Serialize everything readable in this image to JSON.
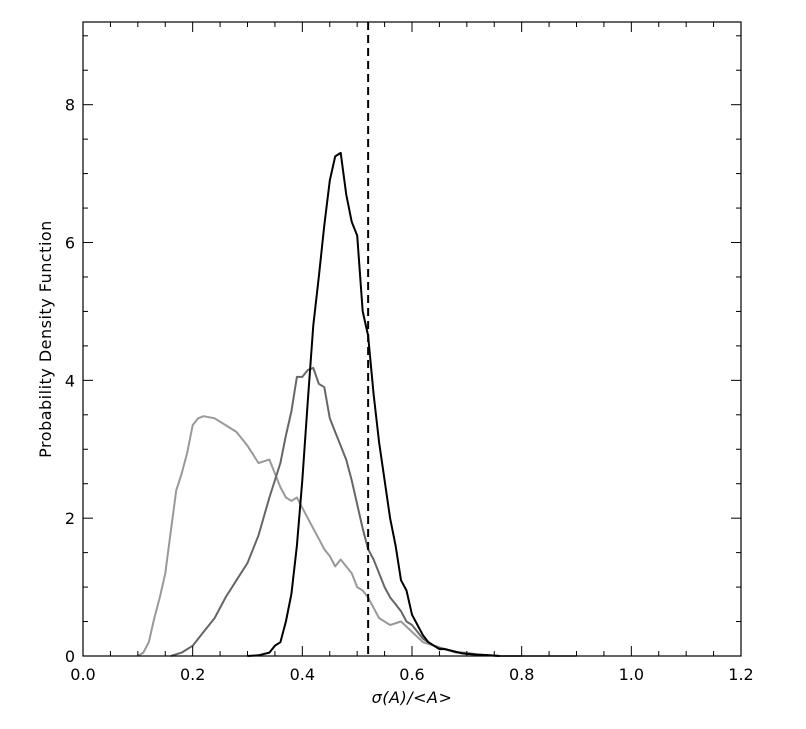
{
  "chart_data": {
    "type": "line",
    "xlabel": "σ(A)/<A>",
    "ylabel": "Probability Density Function",
    "xlim": [
      0.0,
      1.2
    ],
    "ylim": [
      0,
      9.2
    ],
    "xticks": [
      0.0,
      0.2,
      0.4,
      0.6,
      0.8,
      1.0,
      1.2
    ],
    "xtick_labels": [
      "0.0",
      "0.2",
      "0.4",
      "0.6",
      "0.8",
      "1.0",
      "1.2"
    ],
    "yticks": [
      0,
      2,
      4,
      6,
      8
    ],
    "ytick_labels": [
      "0",
      "2",
      "4",
      "6",
      "8"
    ],
    "grid": false,
    "vline": {
      "x": 0.52,
      "style": "dashed",
      "color": "#000000"
    },
    "series": [
      {
        "color": "#999999",
        "x": [
          0.1,
          0.11,
          0.12,
          0.13,
          0.14,
          0.15,
          0.16,
          0.17,
          0.18,
          0.19,
          0.2,
          0.21,
          0.22,
          0.24,
          0.26,
          0.28,
          0.3,
          0.32,
          0.34,
          0.36,
          0.37,
          0.38,
          0.39,
          0.4,
          0.41,
          0.42,
          0.43,
          0.44,
          0.45,
          0.46,
          0.47,
          0.48,
          0.49,
          0.5,
          0.51,
          0.52,
          0.53,
          0.54,
          0.56,
          0.58,
          0.6,
          0.62,
          0.64,
          0.66,
          0.68,
          0.7,
          0.72,
          0.74,
          0.76,
          0.78,
          0.8,
          0.85,
          0.9
        ],
        "values": [
          0.0,
          0.05,
          0.2,
          0.55,
          0.85,
          1.2,
          1.8,
          2.4,
          2.65,
          2.95,
          3.35,
          3.45,
          3.48,
          3.45,
          3.35,
          3.25,
          3.05,
          2.8,
          2.85,
          2.45,
          2.3,
          2.25,
          2.3,
          2.15,
          2.0,
          1.85,
          1.7,
          1.55,
          1.45,
          1.3,
          1.4,
          1.3,
          1.2,
          1.0,
          0.95,
          0.85,
          0.7,
          0.55,
          0.45,
          0.5,
          0.35,
          0.2,
          0.15,
          0.1,
          0.05,
          0.05,
          0.02,
          0.01,
          0.0,
          0.0,
          0.0,
          0.0,
          0.0
        ]
      },
      {
        "color": "#666666",
        "x": [
          0.16,
          0.18,
          0.2,
          0.22,
          0.24,
          0.26,
          0.28,
          0.3,
          0.32,
          0.34,
          0.36,
          0.37,
          0.38,
          0.39,
          0.4,
          0.41,
          0.42,
          0.43,
          0.44,
          0.45,
          0.46,
          0.47,
          0.48,
          0.49,
          0.5,
          0.51,
          0.52,
          0.53,
          0.54,
          0.55,
          0.56,
          0.57,
          0.58,
          0.59,
          0.6,
          0.61,
          0.62,
          0.63,
          0.64,
          0.65,
          0.66,
          0.67,
          0.68,
          0.69,
          0.7,
          0.72,
          0.74,
          0.76,
          0.8
        ],
        "values": [
          0.0,
          0.05,
          0.15,
          0.35,
          0.55,
          0.85,
          1.1,
          1.35,
          1.75,
          2.3,
          2.8,
          3.2,
          3.55,
          4.05,
          4.05,
          4.15,
          4.18,
          3.95,
          3.9,
          3.45,
          3.25,
          3.05,
          2.85,
          2.55,
          2.2,
          1.85,
          1.55,
          1.4,
          1.2,
          1.0,
          0.85,
          0.75,
          0.65,
          0.5,
          0.45,
          0.35,
          0.25,
          0.2,
          0.15,
          0.12,
          0.1,
          0.08,
          0.06,
          0.05,
          0.03,
          0.02,
          0.01,
          0.0,
          0.0
        ]
      },
      {
        "color": "#000000",
        "x": [
          0.3,
          0.32,
          0.34,
          0.35,
          0.36,
          0.37,
          0.38,
          0.39,
          0.4,
          0.41,
          0.42,
          0.43,
          0.44,
          0.45,
          0.46,
          0.47,
          0.48,
          0.49,
          0.5,
          0.51,
          0.52,
          0.53,
          0.54,
          0.55,
          0.56,
          0.57,
          0.58,
          0.59,
          0.6,
          0.61,
          0.62,
          0.63,
          0.64,
          0.65,
          0.66,
          0.67,
          0.68,
          0.69,
          0.7,
          0.72,
          0.74,
          0.76
        ],
        "values": [
          0.0,
          0.01,
          0.05,
          0.15,
          0.2,
          0.5,
          0.9,
          1.6,
          2.55,
          3.7,
          4.8,
          5.5,
          6.25,
          6.9,
          7.25,
          7.3,
          6.7,
          6.3,
          6.1,
          5.0,
          4.65,
          3.8,
          3.1,
          2.55,
          2.0,
          1.6,
          1.1,
          0.95,
          0.6,
          0.45,
          0.3,
          0.2,
          0.15,
          0.1,
          0.1,
          0.08,
          0.06,
          0.04,
          0.03,
          0.02,
          0.01,
          0.0
        ]
      }
    ]
  }
}
